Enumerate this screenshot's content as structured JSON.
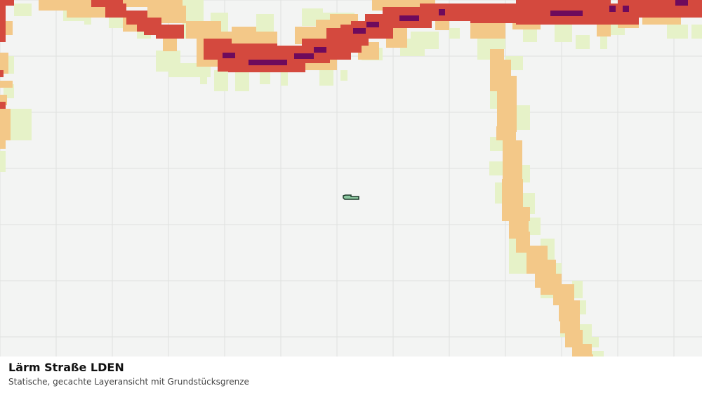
{
  "title": "Lärm Straße LDEN",
  "subtitle": "Statische, gecachte Layeransicht mit Grundstücksgrenze",
  "colors": {
    "background": "#f3f4f3",
    "grid": "#dfe1df",
    "noise_low": "#e6f2c8",
    "noise_mid": "#f3c888",
    "noise_high": "#d4493e",
    "noise_very_high": "#6e0a5c",
    "parcel_fill": "#8cc7a0",
    "parcel_stroke": "#1c3a2a"
  }
}
